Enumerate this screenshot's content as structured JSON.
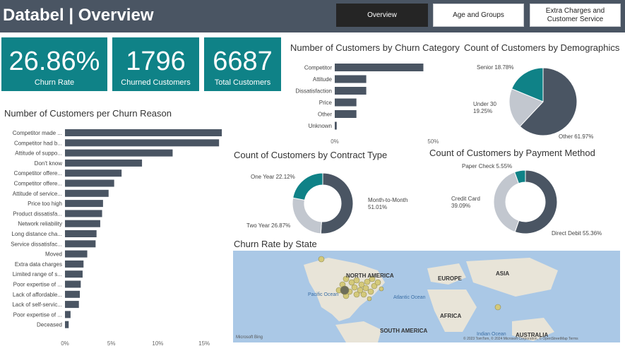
{
  "header": {
    "title": "Databel | Overview",
    "nav": [
      {
        "label": "Overview",
        "active": true
      },
      {
        "label": "Age and Groups",
        "active": false
      },
      {
        "label": "Extra Charges and Customer Service",
        "active": false
      }
    ]
  },
  "kpis": [
    {
      "value": "26.86%",
      "label": "Churn Rate"
    },
    {
      "value": "1796",
      "label": "Churned Customers"
    },
    {
      "value": "6687",
      "label": "Total Customers"
    }
  ],
  "colors": {
    "teal": "#0f8287",
    "slate": "#4a5563",
    "light": "#c2c7cf",
    "header": "#4a5563"
  },
  "chart_data": [
    {
      "type": "bar",
      "orientation": "horizontal",
      "title": "Number of Customers per Churn Reason",
      "categories": [
        "Competitor made ...",
        "Competitor had b...",
        "Attitude of suppo...",
        "Don't know",
        "Competitor offere...",
        "Competitor offere...",
        "Attitude of service...",
        "Price too high",
        "Product dissatisfa...",
        "Network reliability",
        "Long distance cha...",
        "Service dissatisfac...",
        "Moved",
        "Extra data charges",
        "Limited range of s...",
        "Poor expertise of ...",
        "Lack of affordable...",
        "Lack of self-servic...",
        "Poor expertise of ...",
        "Deceased"
      ],
      "values": [
        16.9,
        16.6,
        11.6,
        8.3,
        6.1,
        5.3,
        4.7,
        4.1,
        4.0,
        3.8,
        3.4,
        3.3,
        2.4,
        2.0,
        1.9,
        1.7,
        1.6,
        1.5,
        0.6,
        0.4
      ],
      "xticks": [
        "0%",
        "5%",
        "10%",
        "15%"
      ],
      "xlim": [
        0,
        17.5
      ]
    },
    {
      "type": "bar",
      "orientation": "horizontal",
      "title": "Number of Customers by Churn Category",
      "categories": [
        "Competitor",
        "Attitude",
        "Dissatisfaction",
        "Price",
        "Other",
        "Unknown"
      ],
      "values": [
        45,
        16,
        16,
        11,
        11,
        1
      ],
      "xticks": [
        "0%",
        "50%"
      ],
      "xlim": [
        0,
        52
      ]
    },
    {
      "type": "pie",
      "title": "Count of Customers by Demographics",
      "slices": [
        {
          "label": "Other 61.97%",
          "value": 61.97,
          "color": "#4a5563"
        },
        {
          "label": "Under 30 19.25%",
          "value": 19.25,
          "color": "#c2c7cf"
        },
        {
          "label": "Senior 18.78%",
          "value": 18.78,
          "color": "#0f8287"
        }
      ]
    },
    {
      "type": "pie",
      "donut": true,
      "title": "Count of Customers by Contract Type",
      "slices": [
        {
          "label": "Month-to-Month 51.01%",
          "value": 51.01,
          "color": "#4a5563"
        },
        {
          "label": "Two Year 26.87%",
          "value": 26.87,
          "color": "#c2c7cf"
        },
        {
          "label": "One Year 22.12%",
          "value": 22.12,
          "color": "#0f8287"
        }
      ]
    },
    {
      "type": "pie",
      "donut": true,
      "title": "Count of Customers by Payment Method",
      "slices": [
        {
          "label": "Direct Debit 55.36%",
          "value": 55.36,
          "color": "#4a5563"
        },
        {
          "label": "Credit Card 39.09%",
          "value": 39.09,
          "color": "#c2c7cf"
        },
        {
          "label": "Paper Check 5.55%",
          "value": 5.55,
          "color": "#0f8287"
        }
      ]
    }
  ],
  "map": {
    "title": "Churn Rate by State",
    "labels": [
      "NORTH AMERICA",
      "EUROPE",
      "ASIA",
      "AFRICA",
      "SOUTH AMERICA",
      "AUSTRALIA"
    ],
    "oceans": [
      "Pacific Ocean",
      "Atlantic Ocean",
      "Indian Ocean"
    ],
    "attribution": "© 2023 TomTom, © 2024 Microsoft Corporation, © OpenStreetMap  Terms",
    "brand": "Microsoft Bing"
  }
}
